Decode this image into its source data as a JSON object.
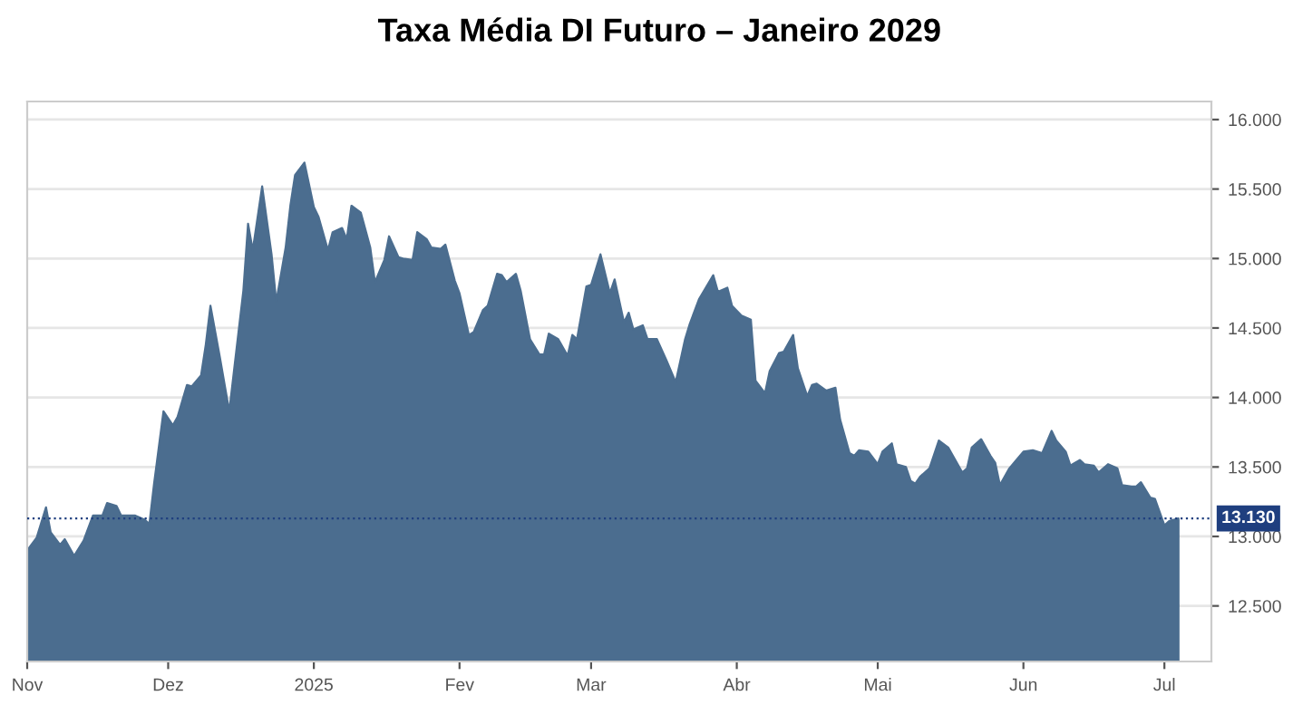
{
  "chart_data": {
    "type": "area",
    "title": "Taxa Média DI Futuro – Janeiro 2029",
    "x": [
      "2024-11-01",
      "2024-11-03",
      "2024-11-05",
      "2024-11-06",
      "2024-11-08",
      "2024-11-09",
      "2024-11-11",
      "2024-11-13",
      "2024-11-15",
      "2024-11-17",
      "2024-11-18",
      "2024-11-20",
      "2024-11-21",
      "2024-11-24",
      "2024-11-26",
      "2024-11-27",
      "2024-11-28",
      "2024-11-30",
      "2024-12-02",
      "2024-12-03",
      "2024-12-05",
      "2024-12-06",
      "2024-12-08",
      "2024-12-09",
      "2024-12-10",
      "2024-12-12",
      "2024-12-14",
      "2024-12-15",
      "2024-12-17",
      "2024-12-18",
      "2024-12-19",
      "2024-12-21",
      "2024-12-23",
      "2024-12-24",
      "2024-12-26",
      "2024-12-27",
      "2024-12-28",
      "2024-12-30",
      "2025-01-01",
      "2025-01-02",
      "2025-01-04",
      "2025-01-05",
      "2025-01-07",
      "2025-01-08",
      "2025-01-09",
      "2025-01-11",
      "2025-01-13",
      "2025-01-14",
      "2025-01-16",
      "2025-01-17",
      "2025-01-19",
      "2025-01-20",
      "2025-01-22",
      "2025-01-23",
      "2025-01-25",
      "2025-01-26",
      "2025-01-28",
      "2025-01-29",
      "2025-01-31",
      "2025-02-01",
      "2025-02-03",
      "2025-02-04",
      "2025-02-06",
      "2025-02-07",
      "2025-02-09",
      "2025-02-10",
      "2025-02-11",
      "2025-02-13",
      "2025-02-14",
      "2025-02-16",
      "2025-02-18",
      "2025-02-19",
      "2025-02-20",
      "2025-02-22",
      "2025-02-24",
      "2025-02-25",
      "2025-02-26",
      "2025-02-28",
      "2025-03-01",
      "2025-03-03",
      "2025-03-05",
      "2025-03-06",
      "2025-03-08",
      "2025-03-09",
      "2025-03-10",
      "2025-03-12",
      "2025-03-13",
      "2025-03-15",
      "2025-03-17",
      "2025-03-19",
      "2025-03-21",
      "2025-03-22",
      "2025-03-24",
      "2025-03-27",
      "2025-03-28",
      "2025-03-30",
      "2025-03-31",
      "2025-04-02",
      "2025-04-04",
      "2025-04-05",
      "2025-04-07",
      "2025-04-08",
      "2025-04-10",
      "2025-04-11",
      "2025-04-13",
      "2025-04-14",
      "2025-04-16",
      "2025-04-17",
      "2025-04-18",
      "2025-04-20",
      "2025-04-22",
      "2025-04-23",
      "2025-04-25",
      "2025-04-26",
      "2025-04-27",
      "2025-04-29",
      "2025-05-01",
      "2025-05-02",
      "2025-05-04",
      "2025-05-05",
      "2025-05-07",
      "2025-05-08",
      "2025-05-09",
      "2025-05-10",
      "2025-05-12",
      "2025-05-14",
      "2025-05-16",
      "2025-05-17",
      "2025-05-19",
      "2025-05-20",
      "2025-05-21",
      "2025-05-23",
      "2025-05-25",
      "2025-05-26",
      "2025-05-27",
      "2025-05-29",
      "2025-05-30",
      "2025-06-01",
      "2025-06-03",
      "2025-06-05",
      "2025-06-07",
      "2025-06-08",
      "2025-06-10",
      "2025-06-11",
      "2025-06-13",
      "2025-06-14",
      "2025-06-16",
      "2025-06-17",
      "2025-06-19",
      "2025-06-21",
      "2025-06-22",
      "2025-06-24",
      "2025-06-25",
      "2025-06-26",
      "2025-06-28",
      "2025-06-29",
      "2025-07-01",
      "2025-07-02",
      "2025-07-04"
    ],
    "series": [
      {
        "color": "#4b6d8f",
        "values": [
          12.9,
          12.99,
          13.21,
          13.03,
          12.94,
          12.98,
          12.86,
          12.97,
          13.15,
          13.15,
          13.24,
          13.22,
          13.15,
          13.15,
          13.12,
          13.09,
          13.38,
          13.9,
          13.8,
          13.86,
          14.09,
          14.08,
          14.16,
          14.38,
          14.66,
          14.29,
          13.9,
          14.19,
          14.77,
          15.25,
          15.06,
          15.52,
          15.03,
          14.69,
          15.08,
          15.38,
          15.6,
          15.69,
          15.37,
          15.3,
          15.06,
          15.19,
          15.22,
          15.14,
          15.38,
          15.33,
          15.08,
          14.83,
          14.99,
          15.16,
          15.01,
          15.0,
          14.99,
          15.19,
          15.14,
          15.08,
          15.07,
          15.1,
          14.84,
          14.75,
          14.45,
          14.47,
          14.63,
          14.66,
          14.89,
          14.88,
          14.83,
          14.89,
          14.77,
          14.42,
          14.31,
          14.31,
          14.46,
          14.42,
          14.3,
          14.45,
          14.42,
          14.8,
          14.81,
          15.03,
          14.75,
          14.85,
          14.54,
          14.61,
          14.49,
          14.52,
          14.42,
          14.42,
          14.27,
          14.11,
          14.42,
          14.53,
          14.71,
          14.88,
          14.76,
          14.79,
          14.66,
          14.59,
          14.56,
          14.12,
          14.03,
          14.19,
          14.32,
          14.33,
          14.45,
          14.21,
          14.01,
          14.09,
          14.1,
          14.05,
          14.07,
          13.84,
          13.6,
          13.58,
          13.62,
          13.61,
          13.52,
          13.61,
          13.67,
          13.52,
          13.5,
          13.4,
          13.38,
          13.43,
          13.49,
          13.69,
          13.64,
          13.58,
          13.46,
          13.49,
          13.64,
          13.7,
          13.58,
          13.53,
          13.37,
          13.49,
          13.53,
          13.61,
          13.62,
          13.6,
          13.76,
          13.69,
          13.61,
          13.51,
          13.55,
          13.52,
          13.51,
          13.46,
          13.52,
          13.49,
          13.37,
          13.36,
          13.36,
          13.39,
          13.28,
          13.27,
          13.08,
          13.11,
          13.13
        ]
      }
    ],
    "xlim": [
      "2024-11-01",
      "2025-07-11"
    ],
    "xticks": [
      {
        "value": "2024-11-01",
        "label": "Nov"
      },
      {
        "value": "2024-12-01",
        "label": "Dez"
      },
      {
        "value": "2025-01-01",
        "label": "2025"
      },
      {
        "value": "2025-02-01",
        "label": "Fev"
      },
      {
        "value": "2025-03-01",
        "label": "Mar"
      },
      {
        "value": "2025-04-01",
        "label": "Abr"
      },
      {
        "value": "2025-05-01",
        "label": "Mai"
      },
      {
        "value": "2025-06-01",
        "label": "Jun"
      },
      {
        "value": "2025-07-01",
        "label": "Jul"
      }
    ],
    "ylim": [
      12.1,
      16.13
    ],
    "yticks": [
      {
        "value": 12.5,
        "label": "12.500"
      },
      {
        "value": 13.0,
        "label": "13.000"
      },
      {
        "value": 13.5,
        "label": "13.500"
      },
      {
        "value": 14.0,
        "label": "14.000"
      },
      {
        "value": 14.5,
        "label": "14.500"
      },
      {
        "value": 15.0,
        "label": "15.000"
      },
      {
        "value": 15.5,
        "label": "15.500"
      },
      {
        "value": 16.0,
        "label": "16.000"
      }
    ],
    "ref_lines": [
      {
        "axis": "y",
        "value": 13.13,
        "label": "13.130",
        "color": "#1f3f7f",
        "line_style": "dotted"
      }
    ],
    "grid": "y",
    "legend": false
  }
}
